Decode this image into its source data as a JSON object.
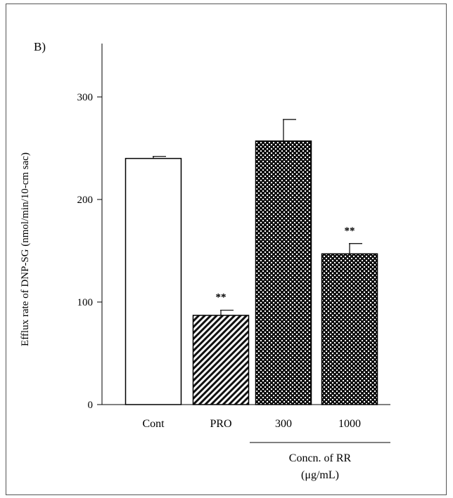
{
  "chart_data": {
    "type": "bar",
    "panel_label": "B)",
    "ylabel": "Efflux rate of DNP-SG  (nmol/min/10-cm sac)",
    "xlabel": "",
    "ylim": [
      0,
      350
    ],
    "yticks": [
      0,
      100,
      200,
      300
    ],
    "categories": [
      "Cont",
      "PRO",
      "300",
      "1000"
    ],
    "values": [
      240,
      87,
      257,
      147
    ],
    "errors": [
      2,
      5,
      21,
      10
    ],
    "significance": [
      "",
      "**",
      "",
      "**"
    ],
    "patterns": [
      "open",
      "diagonal-stripes",
      "checkered",
      "checkered"
    ],
    "group_label": {
      "line1": "Concn. of RR",
      "line2": "(μg/mL)",
      "categories": [
        "300",
        "1000"
      ]
    },
    "grid": false,
    "legend": "none"
  },
  "colors": {
    "bar_stroke": "#000000",
    "bar_open_fill": "#ffffff",
    "pattern_dark": "#111111"
  }
}
